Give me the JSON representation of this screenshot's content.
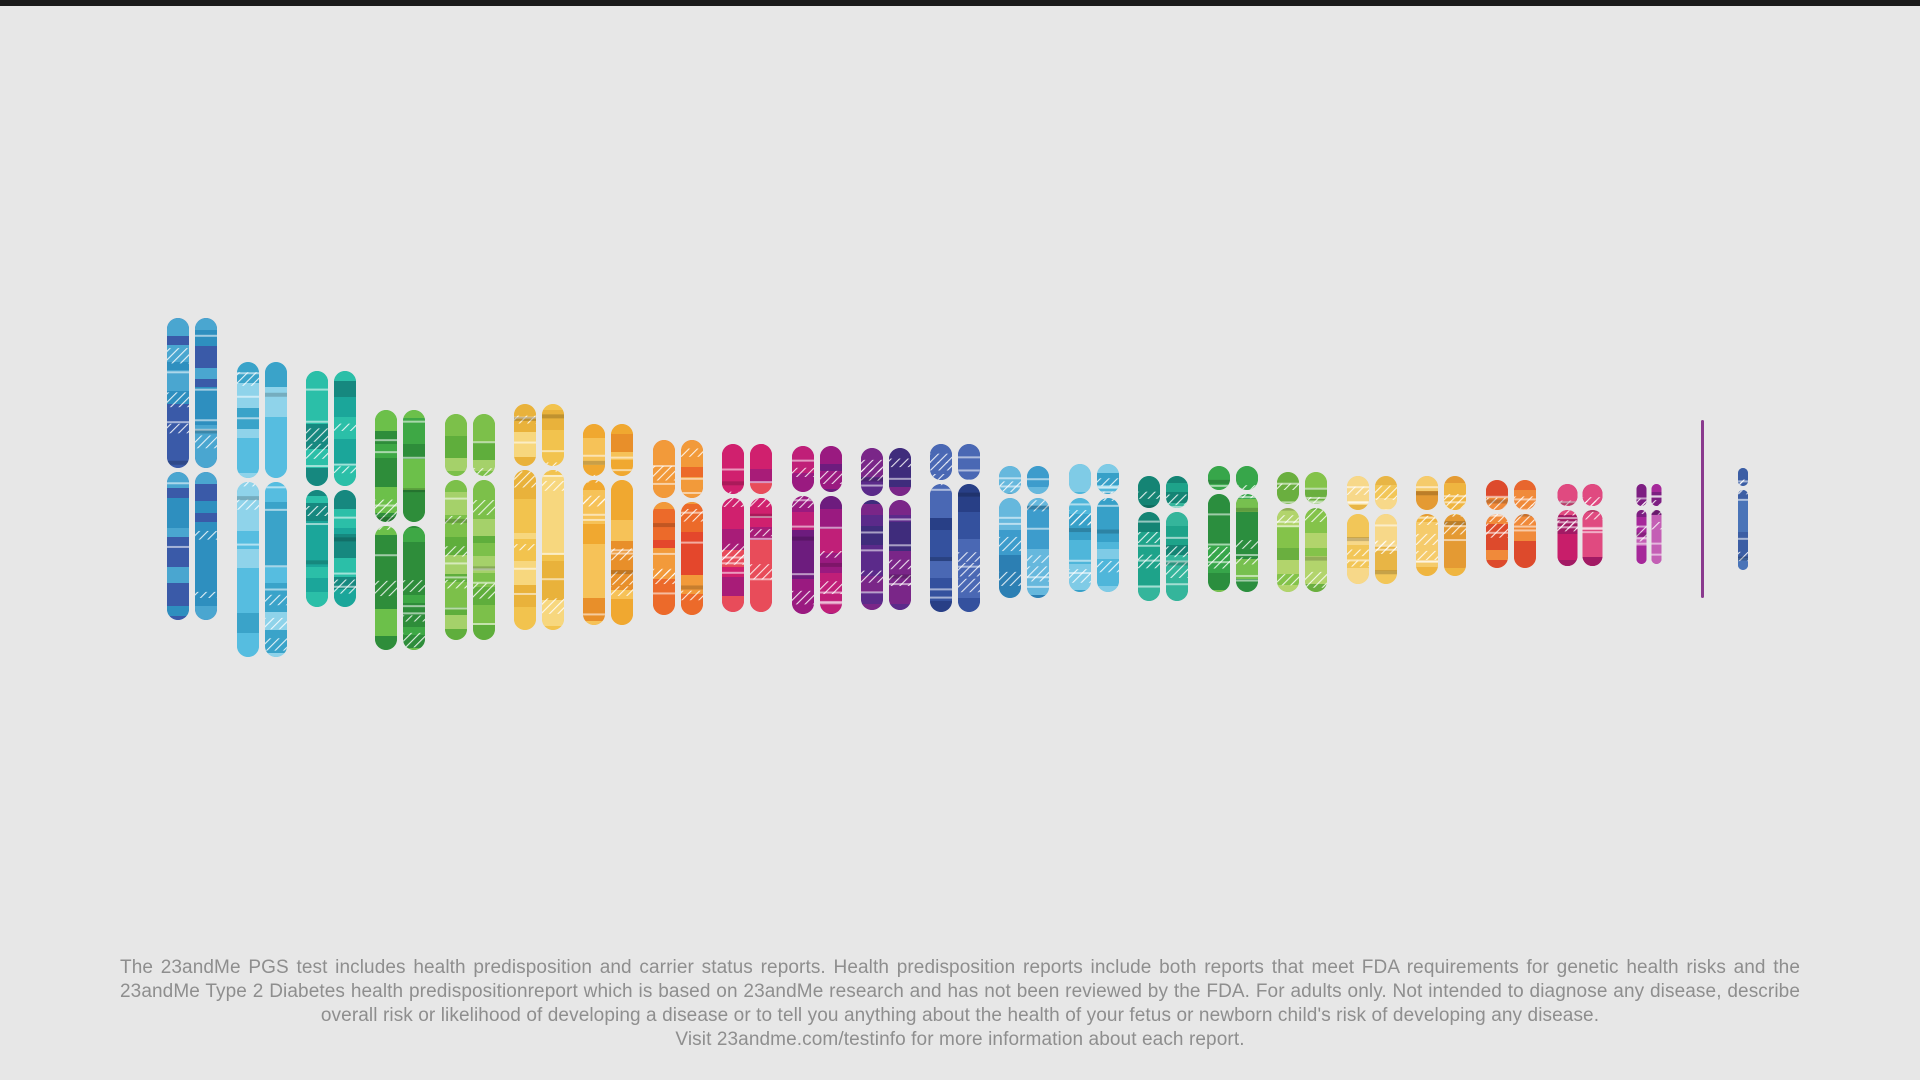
{
  "disclaimer": {
    "text": "The 23andMe PGS test includes health predisposition and carrier status reports. Health predisposition reports include both reports that meet FDA requirements for genetic health risks and the 23andMe Type 2 Diabetes health predispositionreport which is based on 23andMe research and has not been reviewed by the FDA.  For adults only. Not intended to diagnose any disease, describe overall risk or likelihood of developing a disease or to tell you anything about the health of your fetus or newborn child's risk of developing any disease.",
    "visit_line": "Visit 23andme.com/testinfo for more information about each report."
  },
  "palette": {
    "c1": [
      "#3a5aa8",
      "#4aa6d0",
      "#2e8fbf"
    ],
    "c2": [
      "#56bde0",
      "#3aa3c9",
      "#8fd3ea"
    ],
    "c3": [
      "#1ba69a",
      "#2bbfa8",
      "#16887f"
    ],
    "c4": [
      "#3ea845",
      "#2e8d3a",
      "#6cc04a"
    ],
    "c5": [
      "#7cc04a",
      "#5fae3c",
      "#a5d16a"
    ],
    "c6": [
      "#f2c34e",
      "#e9b23b",
      "#f7d77e"
    ],
    "c7": [
      "#f0a830",
      "#e88f2a",
      "#f6c258"
    ],
    "c8": [
      "#ec6a2a",
      "#e4472c",
      "#f29a3a"
    ],
    "c9": [
      "#d0206e",
      "#a81c78",
      "#e84c5a"
    ],
    "c10": [
      "#9a1a80",
      "#c01f78",
      "#6d1c7e"
    ],
    "c11": [
      "#5b2a8a",
      "#7a2688",
      "#3f2c7c"
    ],
    "c12": [
      "#34519e",
      "#283f86",
      "#4a68b4"
    ],
    "c13": [
      "#3d9ccc",
      "#2c7fb3",
      "#66b8dd"
    ],
    "c14": [
      "#4fb6da",
      "#37a0c8",
      "#7fcbe6"
    ],
    "c15": [
      "#1ea38a",
      "#34b59b",
      "#148474"
    ],
    "c16": [
      "#37a64a",
      "#2b8e3e",
      "#77c04f"
    ],
    "c17": [
      "#84c34a",
      "#6aaf3f",
      "#b2d46c"
    ],
    "c18": [
      "#f2c658",
      "#e8b545",
      "#f7d889"
    ],
    "c19": [
      "#efb540",
      "#e49a33",
      "#f5cb6b"
    ],
    "c20": [
      "#e8662e",
      "#dd4a2c",
      "#f08a3a"
    ],
    "c21": [
      "#c81e6a",
      "#a21a64",
      "#e04a80"
    ],
    "c22": [
      "#a6289a",
      "#c45fb5",
      "#7d1f82"
    ],
    "cX": [
      "#8a3a8e",
      "#9c4a9e",
      "#7a2c82"
    ],
    "cY": [
      "#4a74b8",
      "#3c5ea4",
      "#6f95cc"
    ]
  }
}
